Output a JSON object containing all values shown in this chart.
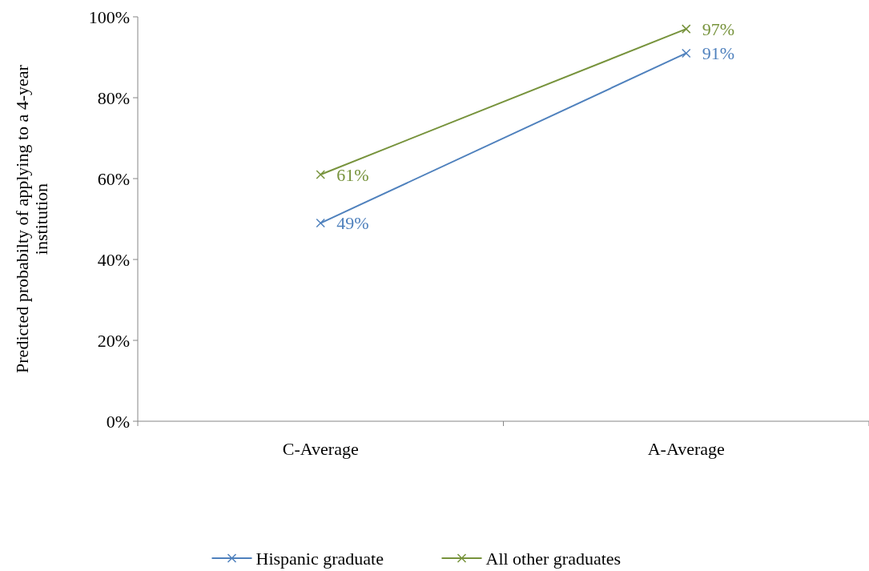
{
  "chart_data": {
    "type": "line",
    "ylabel": "Predicted probabilty of applying to a 4-year institution",
    "categories": [
      "C-Average",
      "A-Average"
    ],
    "series": [
      {
        "name": "Hispanic graduate",
        "color": "#4f81bd",
        "values": [
          49,
          91
        ],
        "value_labels": [
          "49%",
          "91%"
        ]
      },
      {
        "name": "All other graduates",
        "color": "#77933c",
        "values": [
          61,
          97
        ],
        "value_labels": [
          "61%",
          "97%"
        ]
      }
    ],
    "ylim": [
      0,
      100
    ],
    "yticks": [
      {
        "value": 0,
        "label": "0%"
      },
      {
        "value": 20,
        "label": "20%"
      },
      {
        "value": 40,
        "label": "40%"
      },
      {
        "value": 60,
        "label": "60%"
      },
      {
        "value": 80,
        "label": "80%"
      },
      {
        "value": 100,
        "label": "100%"
      }
    ],
    "marker": "cross",
    "legend": "bottom",
    "grid": false
  }
}
